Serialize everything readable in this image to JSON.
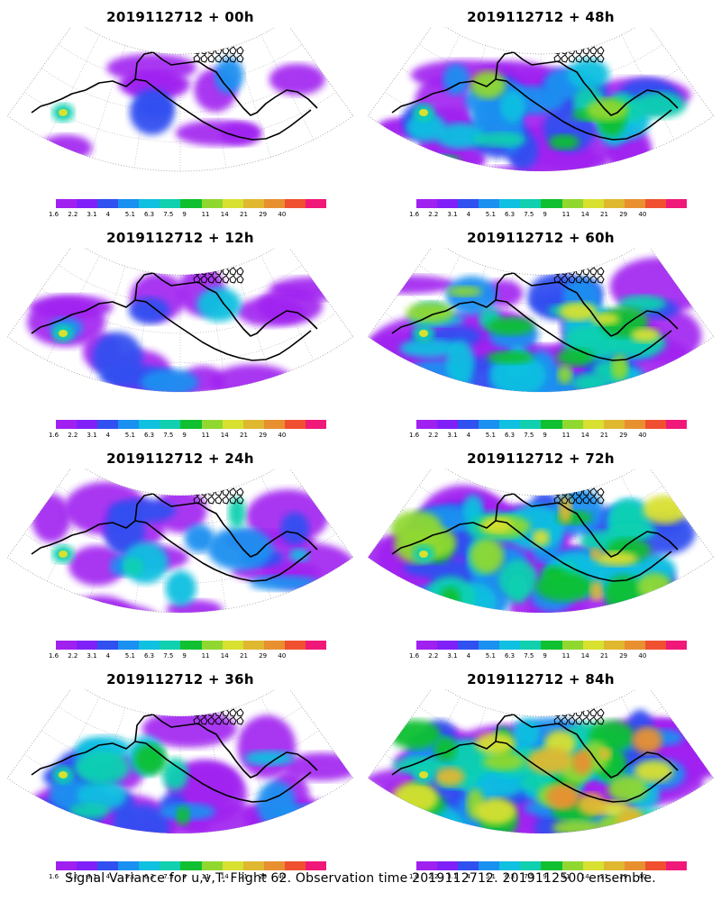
{
  "panels": [
    {
      "title": "2019112712 + 00h",
      "lead_hours": 0
    },
    {
      "title": "2019112712 + 48h",
      "lead_hours": 48
    },
    {
      "title": "2019112712 + 12h",
      "lead_hours": 12
    },
    {
      "title": "2019112712 + 60h",
      "lead_hours": 60
    },
    {
      "title": "2019112712 + 24h",
      "lead_hours": 24
    },
    {
      "title": "2019112712 + 72h",
      "lead_hours": 72
    },
    {
      "title": "2019112712 + 36h",
      "lead_hours": 36
    },
    {
      "title": "2019112712 + 84h",
      "lead_hours": 84
    }
  ],
  "colorbar": {
    "labels": [
      "1.6",
      "2.2",
      "3.1",
      "4",
      "5.1",
      "6.3",
      "7.5",
      "9",
      "11",
      "14",
      "21",
      "29",
      "40"
    ],
    "colors": [
      "#a020f0",
      "#8020f8",
      "#3050f0",
      "#1a90f0",
      "#10c0e0",
      "#10d0b0",
      "#10c030",
      "#90d830",
      "#d8e030",
      "#e0b830",
      "#e89030",
      "#f05030",
      "#f01878"
    ]
  },
  "footer": "Signal Variance for u,v,T. Flight 62. Observation time 2019112712. 2019112500 ensemble.",
  "map": {
    "projection": "polar stereographic sector, North Pacific / Alaska",
    "coastline_color": "#000000",
    "graticule": "dotted"
  }
}
